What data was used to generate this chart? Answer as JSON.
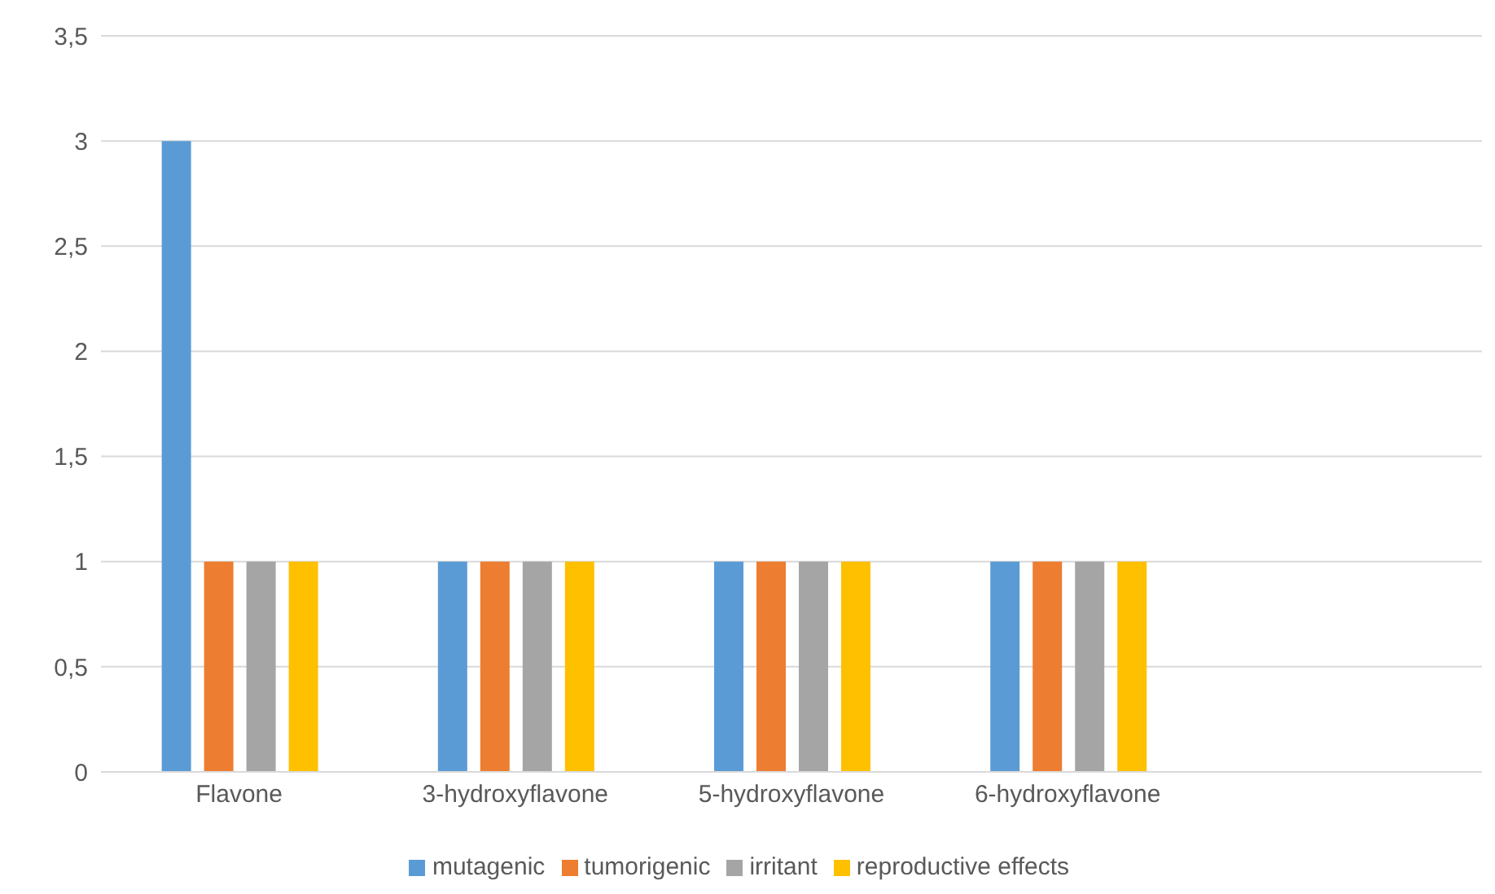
{
  "chart_data": {
    "type": "bar",
    "categories": [
      "Flavone",
      "3-hydroxyflavone",
      "5-hydroxyflavone",
      "6-hydroxyflavone",
      null
    ],
    "series": [
      {
        "name": "mutagenic",
        "color": "#5b9bd5",
        "values": [
          3,
          1,
          1,
          1,
          null
        ]
      },
      {
        "name": "tumorigenic",
        "color": "#ed7d31",
        "values": [
          1,
          1,
          1,
          1,
          null
        ]
      },
      {
        "name": "irritant",
        "color": "#a5a5a5",
        "values": [
          1,
          1,
          1,
          1,
          null
        ]
      },
      {
        "name": "reproductive effects",
        "color": "#ffc000",
        "values": [
          1,
          1,
          1,
          1,
          null
        ]
      }
    ],
    "ylim": [
      0,
      3.5
    ],
    "yticks": [
      0,
      {
        "value": 0.5,
        "label": "0,5"
      },
      1,
      {
        "value": 1.5,
        "label": "1,5"
      },
      2,
      {
        "value": 2.5,
        "label": "2,5"
      },
      3,
      {
        "value": 3.5,
        "label": "3,5"
      }
    ],
    "grid": "y",
    "legend": "bottom"
  }
}
